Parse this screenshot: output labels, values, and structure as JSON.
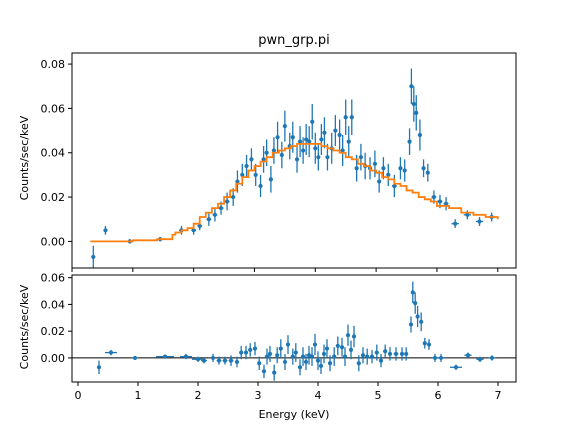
{
  "chart_data": [
    {
      "type": "scatter",
      "title": "pwn_grp.pi",
      "xlabel": "",
      "ylabel": "Counts/sec/keV",
      "xlim": [
        0,
        7.3
      ],
      "ylim": [
        -0.012,
        0.085
      ],
      "yticks": [
        "0.00",
        "0.02",
        "0.04",
        "0.06",
        "0.08"
      ],
      "yticks_values": [
        0.0,
        0.02,
        0.04,
        0.06,
        0.08
      ],
      "series": [
        {
          "kind": "data-with-errorbars",
          "color": "#1f77b4",
          "x": [
            0.35,
            0.55,
            0.95,
            1.45,
            1.8,
            2.0,
            2.1,
            2.25,
            2.35,
            2.45,
            2.55,
            2.65,
            2.72,
            2.8,
            2.87,
            2.95,
            3.02,
            3.1,
            3.15,
            3.2,
            3.27,
            3.32,
            3.38,
            3.45,
            3.5,
            3.58,
            3.63,
            3.7,
            3.75,
            3.8,
            3.85,
            3.9,
            3.95,
            4.0,
            4.05,
            4.1,
            4.15,
            4.2,
            4.27,
            4.33,
            4.4,
            4.45,
            4.5,
            4.55,
            4.6,
            4.68,
            4.75,
            4.82,
            4.9,
            4.98,
            5.05,
            5.12,
            5.2,
            5.3,
            5.4,
            5.47,
            5.55,
            5.58,
            5.62,
            5.66,
            5.72,
            5.78,
            5.85,
            5.95,
            6.05,
            6.15,
            6.3,
            6.5,
            6.7,
            6.9
          ],
          "y": [
            -0.007,
            0.005,
            0.0,
            0.001,
            0.005,
            0.005,
            0.007,
            0.01,
            0.012,
            0.015,
            0.018,
            0.02,
            0.027,
            0.03,
            0.034,
            0.037,
            0.03,
            0.025,
            0.037,
            0.04,
            0.028,
            0.041,
            0.047,
            0.039,
            0.052,
            0.043,
            0.047,
            0.037,
            0.045,
            0.041,
            0.046,
            0.045,
            0.054,
            0.042,
            0.038,
            0.046,
            0.049,
            0.038,
            0.042,
            0.05,
            0.048,
            0.041,
            0.056,
            0.045,
            0.056,
            0.033,
            0.038,
            0.034,
            0.033,
            0.035,
            0.027,
            0.033,
            0.03,
            0.025,
            0.033,
            0.032,
            0.045,
            0.07,
            0.062,
            0.058,
            0.048,
            0.033,
            0.031,
            0.02,
            0.018,
            0.017,
            0.008,
            0.012,
            0.009,
            0.011
          ],
          "yerr": [
            0.005,
            0.002,
            0.001,
            0.001,
            0.002,
            0.002,
            0.002,
            0.003,
            0.003,
            0.003,
            0.004,
            0.004,
            0.005,
            0.005,
            0.005,
            0.005,
            0.005,
            0.005,
            0.006,
            0.006,
            0.006,
            0.006,
            0.007,
            0.006,
            0.007,
            0.006,
            0.007,
            0.006,
            0.007,
            0.006,
            0.007,
            0.007,
            0.008,
            0.007,
            0.006,
            0.007,
            0.007,
            0.006,
            0.007,
            0.007,
            0.007,
            0.007,
            0.008,
            0.007,
            0.008,
            0.006,
            0.006,
            0.006,
            0.005,
            0.006,
            0.005,
            0.005,
            0.005,
            0.005,
            0.005,
            0.005,
            0.006,
            0.008,
            0.008,
            0.008,
            0.007,
            0.004,
            0.004,
            0.003,
            0.003,
            0.003,
            0.002,
            0.002,
            0.002,
            0.002
          ],
          "xerr": [
            0.03,
            0.03,
            0.05,
            0.06,
            0.04,
            0.04,
            0.04,
            0.04,
            0.04,
            0.04,
            0.04,
            0.03,
            0.03,
            0.03,
            0.03,
            0.03,
            0.03,
            0.03,
            0.025,
            0.025,
            0.025,
            0.025,
            0.025,
            0.025,
            0.025,
            0.025,
            0.025,
            0.025,
            0.025,
            0.025,
            0.025,
            0.025,
            0.025,
            0.025,
            0.025,
            0.025,
            0.025,
            0.025,
            0.025,
            0.025,
            0.025,
            0.025,
            0.025,
            0.025,
            0.025,
            0.03,
            0.03,
            0.03,
            0.03,
            0.03,
            0.03,
            0.03,
            0.03,
            0.04,
            0.03,
            0.03,
            0.02,
            0.02,
            0.02,
            0.02,
            0.02,
            0.03,
            0.03,
            0.04,
            0.04,
            0.04,
            0.06,
            0.06,
            0.06,
            0.06
          ]
        },
        {
          "kind": "model-step",
          "color": "#ff7f0e",
          "x": [
            0.3,
            0.6,
            1.0,
            1.4,
            1.65,
            1.7,
            1.8,
            1.9,
            2.0,
            2.1,
            2.2,
            2.3,
            2.4,
            2.5,
            2.6,
            2.7,
            2.8,
            2.9,
            3.0,
            3.1,
            3.2,
            3.3,
            3.4,
            3.5,
            3.6,
            3.7,
            3.8,
            3.9,
            4.0,
            4.1,
            4.2,
            4.3,
            4.4,
            4.5,
            4.6,
            4.7,
            4.8,
            4.9,
            5.0,
            5.1,
            5.2,
            5.3,
            5.4,
            5.5,
            5.6,
            5.7,
            5.8,
            5.9,
            6.0,
            6.2,
            6.4,
            6.6,
            6.8,
            7.0
          ],
          "y": [
            0.0,
            0.0,
            0.0005,
            0.001,
            0.003,
            0.004,
            0.005,
            0.006,
            0.008,
            0.011,
            0.013,
            0.015,
            0.017,
            0.02,
            0.023,
            0.026,
            0.029,
            0.032,
            0.034,
            0.036,
            0.038,
            0.04,
            0.041,
            0.042,
            0.043,
            0.044,
            0.044,
            0.044,
            0.044,
            0.043,
            0.042,
            0.041,
            0.04,
            0.038,
            0.037,
            0.035,
            0.034,
            0.032,
            0.031,
            0.029,
            0.028,
            0.026,
            0.025,
            0.023,
            0.022,
            0.02,
            0.019,
            0.018,
            0.016,
            0.015,
            0.013,
            0.012,
            0.011,
            0.01
          ]
        }
      ]
    },
    {
      "type": "scatter",
      "title": "",
      "xlabel": "Energy (keV)",
      "ylabel": "Counts/sec/keV",
      "xlim": [
        -0.1,
        7.3
      ],
      "ylim": [
        -0.018,
        0.062
      ],
      "xticks": [
        "0",
        "1",
        "2",
        "3",
        "4",
        "5",
        "6",
        "7"
      ],
      "xticks_values": [
        0,
        1,
        2,
        3,
        4,
        5,
        6,
        7
      ],
      "yticks": [
        "0.00",
        "0.02",
        "0.04",
        "0.06"
      ],
      "yticks_values": [
        0.0,
        0.02,
        0.04,
        0.06
      ],
      "reference_line": 0,
      "series": [
        {
          "kind": "residuals",
          "color": "#1f77b4",
          "x": [
            0.35,
            0.55,
            0.95,
            1.45,
            1.8,
            2.0,
            2.1,
            2.25,
            2.35,
            2.45,
            2.55,
            2.65,
            2.72,
            2.8,
            2.87,
            2.95,
            3.02,
            3.1,
            3.15,
            3.2,
            3.27,
            3.32,
            3.38,
            3.45,
            3.5,
            3.58,
            3.63,
            3.7,
            3.75,
            3.8,
            3.85,
            3.9,
            3.95,
            4.0,
            4.05,
            4.1,
            4.15,
            4.2,
            4.27,
            4.33,
            4.4,
            4.45,
            4.5,
            4.55,
            4.6,
            4.68,
            4.75,
            4.82,
            4.9,
            4.98,
            5.05,
            5.12,
            5.2,
            5.3,
            5.4,
            5.47,
            5.55,
            5.58,
            5.62,
            5.66,
            5.72,
            5.78,
            5.85,
            5.95,
            6.05,
            6.3,
            6.5,
            6.7,
            6.9
          ],
          "y": [
            -0.007,
            0.004,
            0.0,
            0.001,
            0.001,
            -0.001,
            -0.002,
            0.0,
            -0.002,
            -0.002,
            -0.002,
            -0.003,
            0.004,
            0.004,
            0.006,
            0.007,
            -0.004,
            -0.01,
            0.001,
            0.003,
            -0.011,
            0.002,
            0.007,
            -0.003,
            0.01,
            0.001,
            0.004,
            -0.007,
            0.001,
            -0.003,
            0.002,
            0.001,
            0.01,
            -0.002,
            -0.006,
            0.003,
            0.007,
            -0.004,
            0.001,
            0.009,
            0.008,
            0.001,
            0.017,
            0.006,
            0.016,
            -0.004,
            0.002,
            0.001,
            0.001,
            0.004,
            -0.002,
            0.005,
            0.003,
            0.003,
            0.003,
            0.003,
            0.025,
            0.049,
            0.041,
            0.031,
            0.027,
            0.011,
            0.01,
            0.0,
            0.0,
            -0.007,
            0.002,
            -0.001,
            0.0
          ],
          "yerr": [
            0.005,
            0.002,
            0.001,
            0.001,
            0.002,
            0.002,
            0.002,
            0.003,
            0.003,
            0.003,
            0.004,
            0.004,
            0.005,
            0.005,
            0.005,
            0.005,
            0.005,
            0.005,
            0.006,
            0.006,
            0.006,
            0.006,
            0.007,
            0.006,
            0.007,
            0.006,
            0.007,
            0.006,
            0.007,
            0.006,
            0.007,
            0.007,
            0.008,
            0.007,
            0.006,
            0.007,
            0.007,
            0.006,
            0.007,
            0.007,
            0.007,
            0.007,
            0.008,
            0.007,
            0.008,
            0.006,
            0.006,
            0.006,
            0.005,
            0.006,
            0.005,
            0.005,
            0.005,
            0.005,
            0.005,
            0.005,
            0.006,
            0.008,
            0.008,
            0.008,
            0.007,
            0.004,
            0.004,
            0.003,
            0.003,
            0.002,
            0.002,
            0.002,
            0.002
          ],
          "xerr": [
            0.03,
            0.1,
            0.05,
            0.15,
            0.1,
            0.1,
            0.05,
            0.04,
            0.04,
            0.04,
            0.04,
            0.03,
            0.03,
            0.03,
            0.03,
            0.03,
            0.03,
            0.03,
            0.025,
            0.025,
            0.025,
            0.025,
            0.025,
            0.025,
            0.025,
            0.025,
            0.025,
            0.025,
            0.025,
            0.025,
            0.025,
            0.025,
            0.025,
            0.025,
            0.025,
            0.025,
            0.025,
            0.025,
            0.025,
            0.025,
            0.025,
            0.025,
            0.025,
            0.025,
            0.025,
            0.03,
            0.03,
            0.03,
            0.03,
            0.03,
            0.03,
            0.03,
            0.03,
            0.04,
            0.03,
            0.03,
            0.02,
            0.02,
            0.02,
            0.02,
            0.02,
            0.03,
            0.03,
            0.05,
            0.06,
            0.1,
            0.06,
            0.06,
            0.06
          ]
        }
      ]
    }
  ]
}
